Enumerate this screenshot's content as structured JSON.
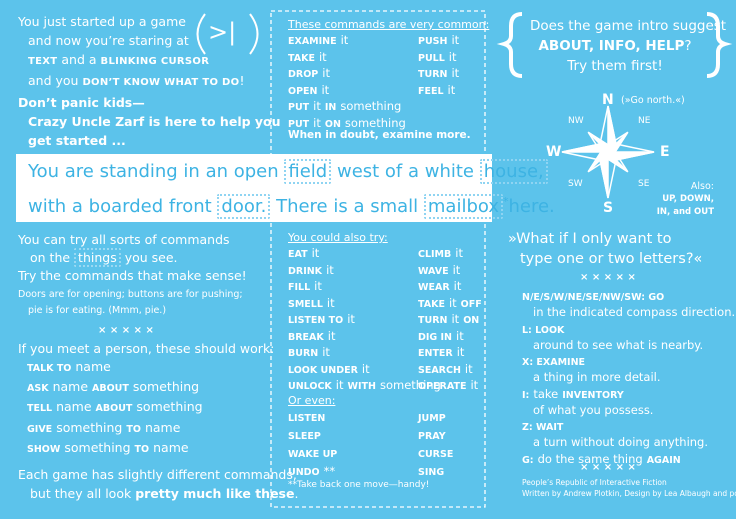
{
  "intro": {
    "l1": "You just started up a game",
    "l2": "and now you’re staring at",
    "l3a": "TEXT",
    "l3b": "and a",
    "l3c": "BLINKING CURSOR",
    "l4a": "and you",
    "l4b": "DON’T KNOW WHAT TO DO",
    "l4c": "!"
  },
  "cursor_icon": ">|",
  "panic": [
    "Don’t panic kids—",
    "Crazy Uncle Zarf is here to help you",
    "get started ..."
  ],
  "room": {
    "a": "You are standing in an open",
    "field": "field",
    "b": "west of a white",
    "house": "house,",
    "c": "with a boarded front",
    "door": "door.",
    "d": "There is a small",
    "mailbox": "mailbox",
    "star": "*",
    "e": "here."
  },
  "try": {
    "l1": "You can try all sorts of commands",
    "l2a": "on the",
    "l2b": "things",
    "l2c": "you see.",
    "l3": "Try the commands that make sense!",
    "s1": "Doors are for opening; buttons are for pushing;",
    "s2": "pie is for eating. (Mmm, pie.)",
    "stars": "× × × × ×",
    "person": "If you meet a person, these should work:",
    "commands": [
      [
        "TALK TO",
        "name"
      ],
      [
        "ASK",
        "name",
        "ABOUT",
        "something"
      ],
      [
        "TELL",
        "name",
        "ABOUT",
        "something"
      ],
      [
        "GIVE",
        "something",
        "TO",
        "name"
      ],
      [
        "SHOW",
        "something",
        "TO",
        "name"
      ]
    ],
    "end1": "Each game has slightly different commands,",
    "end2a": "but they all look",
    "end2b": "pretty much like these",
    "end2c": "."
  },
  "common": {
    "heading": "These commands are very common:",
    "left": [
      [
        "EXAMINE",
        "it"
      ],
      [
        "TAKE",
        "it"
      ],
      [
        "DROP",
        "it"
      ],
      [
        "OPEN",
        "it"
      ],
      [
        "PUT",
        "it",
        "IN",
        "something"
      ],
      [
        "PUT",
        "it",
        "ON",
        "something"
      ]
    ],
    "right": [
      [
        "PUSH",
        "it"
      ],
      [
        "PULL",
        "it"
      ],
      [
        "TURN",
        "it"
      ],
      [
        "FEEL",
        "it"
      ]
    ],
    "tip": "When in doubt, examine more."
  },
  "also": {
    "heading": "You could also try:",
    "left": [
      [
        "EAT",
        "it"
      ],
      [
        "DRINK",
        "it"
      ],
      [
        "FILL",
        "it"
      ],
      [
        "SMELL",
        "it"
      ],
      [
        "LISTEN TO",
        "it"
      ],
      [
        "BREAK",
        "it"
      ],
      [
        "BURN",
        "it"
      ],
      [
        "LOOK UNDER",
        "it"
      ],
      [
        "UNLOCK",
        "it",
        "WITH",
        "something"
      ]
    ],
    "right": [
      [
        "CLIMB",
        "it"
      ],
      [
        "WAVE",
        "it"
      ],
      [
        "WEAR",
        "it"
      ],
      [
        "TAKE",
        "it",
        "OFF"
      ],
      [
        "TURN",
        "it",
        "ON"
      ],
      [
        "DIG IN",
        "it"
      ],
      [
        "ENTER",
        "it"
      ],
      [
        "SEARCH",
        "it"
      ],
      [
        "OPERATE",
        "it"
      ]
    ]
  },
  "even": {
    "heading": "Or even:",
    "left": [
      [
        "LISTEN"
      ],
      [
        "SLEEP"
      ],
      [
        "WAKE UP"
      ],
      [
        "UNDO",
        "**"
      ]
    ],
    "right": [
      [
        "JUMP"
      ],
      [
        "PRAY"
      ],
      [
        "CURSE"
      ],
      [
        "SING"
      ]
    ],
    "note": "**Take back one move—handy!"
  },
  "help": {
    "l1": "Does the game intro suggest",
    "l2a": "ABOUT, INFO, HELP",
    "l2b": "?",
    "l3": "Try them first!"
  },
  "compass": {
    "n": "N",
    "ne": "NE",
    "e": "E",
    "se": "SE",
    "s": "S",
    "sw": "SW",
    "w": "W",
    "nw": "NW",
    "go": "(»Go north.«)",
    "also": "Also:",
    "also1": "UP, DOWN,",
    "also2": "IN, and OUT"
  },
  "letters": {
    "q1": "»What if I only want to",
    "q2": "type one or two letters?«",
    "stars": "× × × × ×",
    "items": [
      {
        "key": [
          "N/E/S/W/NE/SE/NW/SW: GO"
        ],
        "desc": "in the indicated compass direction."
      },
      {
        "key": [
          "L: LOOK"
        ],
        "desc": "around to see what is nearby."
      },
      {
        "key": [
          "X: EXAMINE"
        ],
        "desc": "a thing in more detail."
      },
      {
        "key": [
          "I:",
          "take",
          "INVENTORY"
        ],
        "desc": "of what you possess."
      },
      {
        "key": [
          "Z: WAIT"
        ],
        "desc": "a turn without doing anything."
      },
      {
        "key": [
          "G:",
          "do the same thing",
          "AGAIN"
        ]
      }
    ],
    "stars2": "× × × × ×"
  },
  "credits": {
    "l1": "People’s Republic of Interactive Fiction",
    "l2": "Written by Andrew Plotkin, Design by Lea Albaugh and poly.play"
  }
}
